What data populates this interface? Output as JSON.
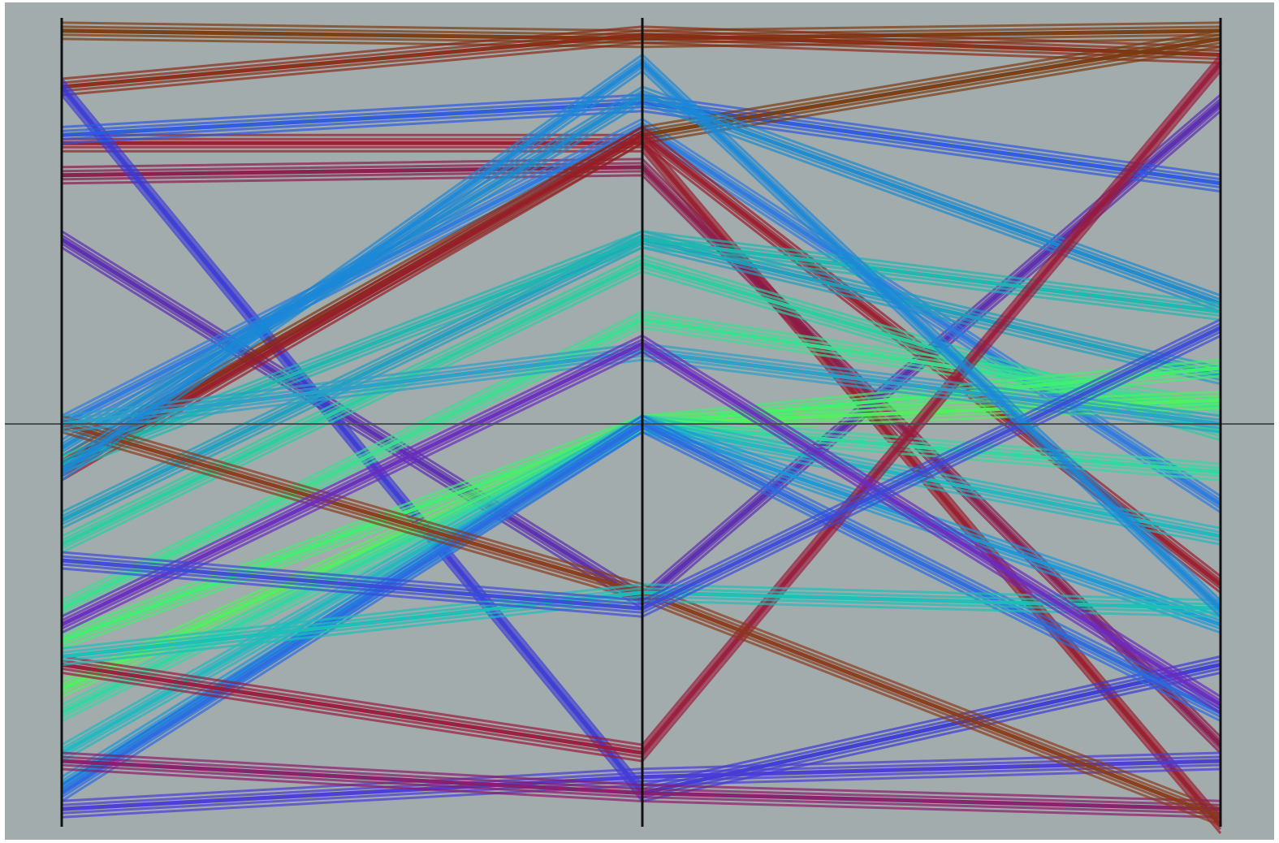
{
  "chart_data": {
    "type": "parallel-coordinates",
    "title": "",
    "axes": [
      {
        "label": "",
        "range": [
          -1,
          1
        ]
      },
      {
        "label": "",
        "range": [
          -1,
          1
        ]
      },
      {
        "label": "",
        "range": [
          -1,
          1
        ]
      }
    ],
    "reference_line": 0,
    "grid": false,
    "legend": "none",
    "series": [
      {
        "color": "#7a3a0e",
        "values": [
          0.98,
          0.96,
          0.98
        ]
      },
      {
        "color": "#8a2a14",
        "values": [
          0.84,
          0.97,
          0.92
        ]
      },
      {
        "color": "#9a1a2a",
        "values": [
          0.7,
          0.7,
          -1.0
        ]
      },
      {
        "color": "#8a1a4a",
        "values": [
          0.62,
          0.64,
          -0.8
        ]
      },
      {
        "color": "#5a2ab0",
        "values": [
          0.46,
          -0.44,
          0.8
        ]
      },
      {
        "color": "#3b3ad6",
        "values": [
          0.84,
          -0.92,
          -0.6
        ]
      },
      {
        "color": "#2b5ae0",
        "values": [
          0.72,
          0.8,
          0.6
        ]
      },
      {
        "color": "#2a7ae0",
        "values": [
          0.0,
          0.74,
          -0.2
        ]
      },
      {
        "color": "#7a3a0e",
        "values": [
          -0.1,
          0.72,
          0.96
        ]
      },
      {
        "color": "#9a1a2a",
        "values": [
          -0.12,
          0.72,
          -0.4
        ]
      },
      {
        "color": "#1a8ad0",
        "values": [
          -0.06,
          0.82,
          0.3
        ]
      },
      {
        "color": "#1aa0c0",
        "values": [
          -0.24,
          0.46,
          0.12
        ]
      },
      {
        "color": "#1ab8b0",
        "values": [
          -0.1,
          0.46,
          0.28
        ]
      },
      {
        "color": "#28d0a0",
        "values": [
          -0.3,
          0.4,
          -0.02
        ]
      },
      {
        "color": "#38e090",
        "values": [
          -0.46,
          0.26,
          0.04
        ]
      },
      {
        "color": "#40f070",
        "values": [
          -0.54,
          0.0,
          0.14
        ]
      },
      {
        "color": "#50f060",
        "values": [
          -0.66,
          0.0,
          0.06
        ]
      },
      {
        "color": "#30d8a0",
        "values": [
          -0.72,
          0.0,
          -0.12
        ]
      },
      {
        "color": "#20b8c0",
        "values": [
          -0.82,
          0.0,
          -0.28
        ]
      },
      {
        "color": "#1a98d8",
        "values": [
          -0.9,
          0.0,
          -0.5
        ]
      },
      {
        "color": "#2a6ae0",
        "values": [
          -0.92,
          0.0,
          -0.72
        ]
      },
      {
        "color": "#4a3ad8",
        "values": [
          -0.96,
          -0.88,
          -0.84
        ]
      },
      {
        "color": "#8a1a6a",
        "values": [
          -0.84,
          -0.92,
          -0.96
        ]
      },
      {
        "color": "#9a1a3a",
        "values": [
          -0.6,
          -0.82,
          0.9
        ]
      },
      {
        "color": "#8a3a1a",
        "values": [
          0.0,
          -0.42,
          -0.98
        ]
      },
      {
        "color": "#2aa0c8",
        "values": [
          0.0,
          0.18,
          0.0
        ]
      },
      {
        "color": "#1ac0b8",
        "values": [
          -0.58,
          -0.42,
          -0.46
        ]
      },
      {
        "color": "#6a2ac0",
        "values": [
          -0.5,
          0.2,
          -0.7
        ]
      },
      {
        "color": "#3b4ad8",
        "values": [
          -0.34,
          -0.46,
          0.24
        ]
      },
      {
        "color": "#1a88d8",
        "values": [
          -0.12,
          0.9,
          -0.46
        ]
      }
    ]
  }
}
